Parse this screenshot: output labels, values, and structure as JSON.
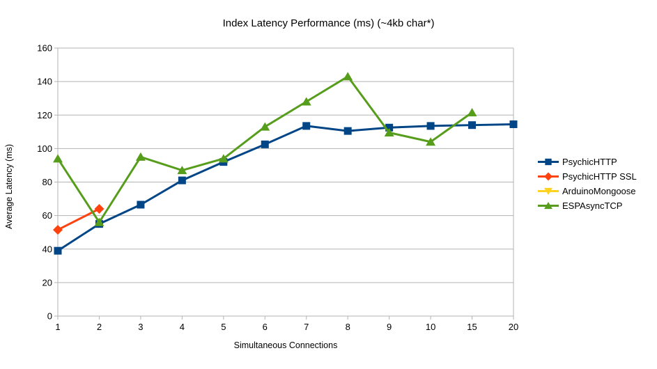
{
  "chart_data": {
    "type": "line",
    "title": "Index Latency Performance (ms) (~4kb char*)",
    "xlabel": "Simultaneous Connections",
    "ylabel": "Average Latency (ms)",
    "categories": [
      "1",
      "2",
      "3",
      "4",
      "5",
      "6",
      "7",
      "8",
      "9",
      "10",
      "15",
      "20"
    ],
    "ylim": [
      0,
      160
    ],
    "yticks": [
      0,
      20,
      40,
      60,
      80,
      100,
      120,
      140,
      160
    ],
    "grid": true,
    "grid_color": "#b3b3b3",
    "text_color": "#000000",
    "legend_position": "right",
    "series": [
      {
        "name": "PsychicHTTP",
        "color": "#004586",
        "marker": "square",
        "values": [
          39,
          55,
          66.5,
          81,
          92,
          102.5,
          113.5,
          110.5,
          112.5,
          113.5,
          114,
          114.5
        ]
      },
      {
        "name": "PsychicHTTP SSL",
        "color": "#ff420e",
        "marker": "diamond",
        "values": [
          51.5,
          64,
          null,
          null,
          null,
          null,
          null,
          null,
          null,
          null,
          null,
          null
        ]
      },
      {
        "name": "ArduinoMongoose",
        "color": "#ffd320",
        "marker": "triangle-down",
        "values": [
          null,
          null,
          null,
          null,
          null,
          null,
          null,
          null,
          null,
          null,
          null,
          null
        ]
      },
      {
        "name": "ESPAsyncTCP",
        "color": "#579d1c",
        "marker": "triangle-up",
        "values": [
          94,
          56,
          95,
          87,
          94,
          113,
          128,
          143,
          109.5,
          104,
          121.5,
          null
        ]
      }
    ]
  }
}
